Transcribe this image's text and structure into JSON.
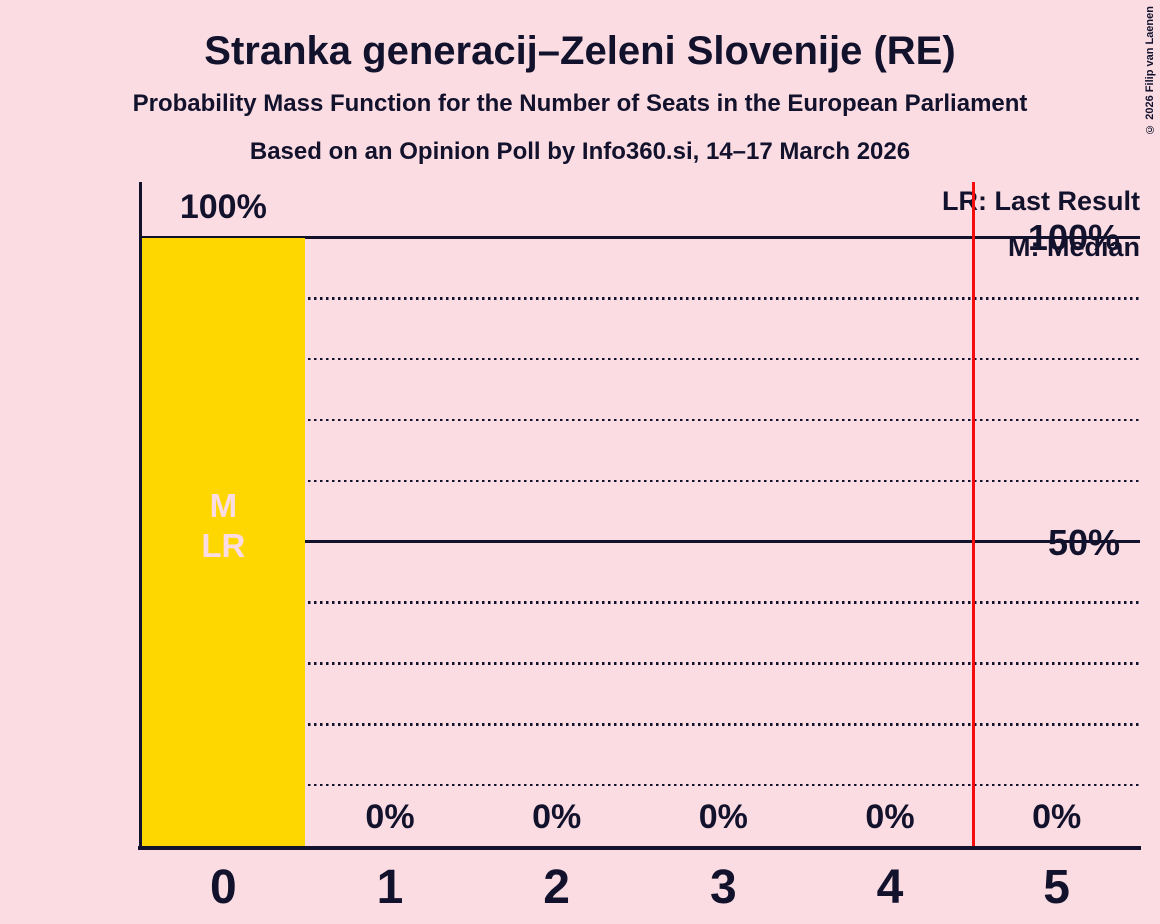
{
  "header": {
    "title": "Stranka generacij–Zeleni Slovenije (RE)",
    "subtitle": "Probability Mass Function for the Number of Seats in the European Parliament",
    "source": "Based on an Opinion Poll by Info360.si, 14–17 March 2026"
  },
  "legend": {
    "last_result": "LR: Last Result",
    "median": "M: Median"
  },
  "y_axis": {
    "labels": [
      {
        "text": "100%",
        "value": 100
      },
      {
        "text": "50%",
        "value": 50
      }
    ]
  },
  "copyright": "© 2026 Filip van Laenen",
  "colors": {
    "background": "#fbdce2",
    "bar": "#ffd700",
    "text": "#12122d",
    "grid": "#12122d",
    "axis": "#12122d",
    "reference_line": "#f40d0d",
    "bar_marker_text": "#fbdce2"
  },
  "chart_data": {
    "type": "bar",
    "title": "Stranka generacij–Zeleni Slovenije (RE) — Probability Mass Function for the Number of Seats in the European Parliament",
    "categories": [
      "0",
      "1",
      "2",
      "3",
      "4",
      "5"
    ],
    "values": [
      100,
      0,
      0,
      0,
      0,
      0
    ],
    "value_labels": [
      "100%",
      "0%",
      "0%",
      "0%",
      "0%",
      "0%"
    ],
    "xlabel": "",
    "ylabel": "",
    "ylim": [
      0,
      100
    ],
    "grid": "horizontal",
    "gridlines": {
      "solid_percent": [
        100,
        50
      ],
      "dotted_percent": [
        90,
        80,
        70,
        60,
        40,
        30,
        20,
        10
      ]
    },
    "median_seats": 0,
    "last_result_seats": 0,
    "markers": {
      "category_index": 0,
      "symbols": [
        "M",
        "LR"
      ]
    },
    "reference_line_x_seats": 4.5,
    "legend_position": "top-right"
  }
}
